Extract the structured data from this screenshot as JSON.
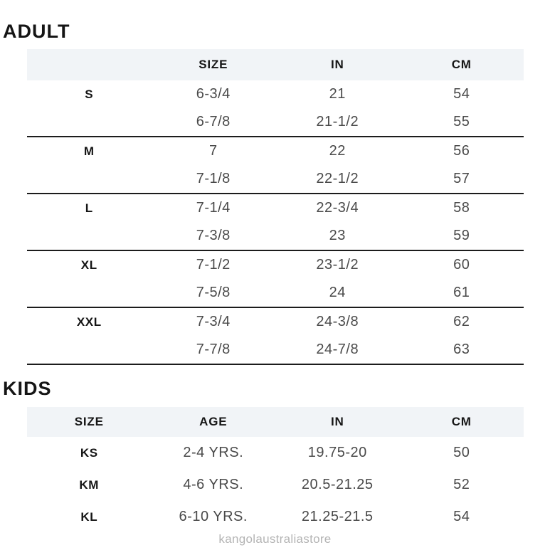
{
  "page": {
    "watermark": "kangolaustraliastore"
  },
  "colors": {
    "header_band_bg": "#f1f4f7",
    "title_text": "#151515",
    "data_text": "#4a4a4a",
    "divider": "#1c1c1c",
    "watermark_text": "#b4b4b4"
  },
  "adult": {
    "title": "ADULT",
    "headers": [
      "",
      "SIZE",
      "IN",
      "CM"
    ],
    "groups": [
      {
        "rows": [
          [
            "S",
            "6-3/4",
            "21",
            "54"
          ],
          [
            "",
            "6-7/8",
            "21-1/2",
            "55"
          ]
        ]
      },
      {
        "rows": [
          [
            "M",
            "7",
            "22",
            "56"
          ],
          [
            "",
            "7-1/8",
            "22-1/2",
            "57"
          ]
        ]
      },
      {
        "rows": [
          [
            "L",
            "7-1/4",
            "22-3/4",
            "58"
          ],
          [
            "",
            "7-3/8",
            "23",
            "59"
          ]
        ]
      },
      {
        "rows": [
          [
            "XL",
            "7-1/2",
            "23-1/2",
            "60"
          ],
          [
            "",
            "7-5/8",
            "24",
            "61"
          ]
        ]
      },
      {
        "rows": [
          [
            "XXL",
            "7-3/4",
            "24-3/8",
            "62"
          ],
          [
            "",
            "7-7/8",
            "24-7/8",
            "63"
          ]
        ]
      }
    ]
  },
  "kids": {
    "title": "KIDS",
    "headers": [
      "SIZE",
      "AGE",
      "IN",
      "CM"
    ],
    "rows": [
      [
        "KS",
        "2-4 YRS.",
        "19.75-20",
        "50"
      ],
      [
        "KM",
        "4-6 YRS.",
        "20.5-21.25",
        "52"
      ],
      [
        "KL",
        "6-10 YRS.",
        "21.25-21.5",
        "54"
      ]
    ]
  }
}
